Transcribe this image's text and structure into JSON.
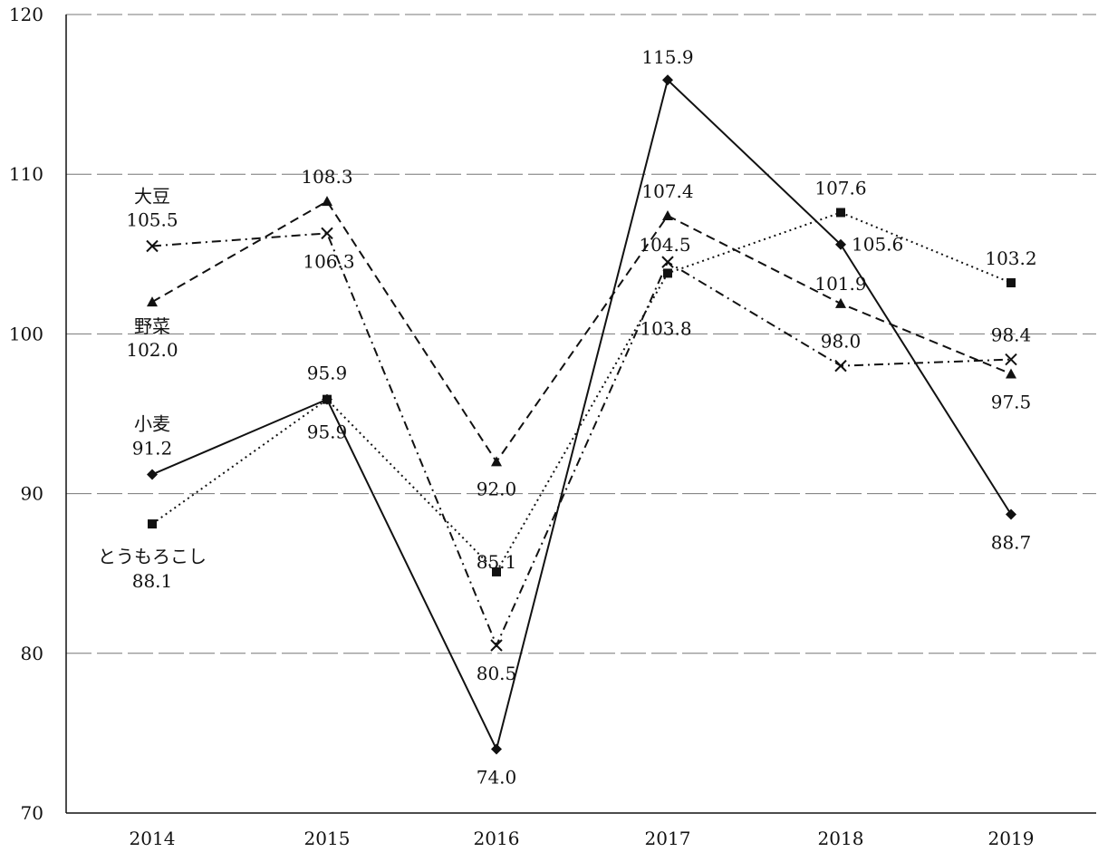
{
  "chart_data": {
    "type": "line",
    "x": [
      "2014",
      "2015",
      "2016",
      "2017",
      "2018",
      "2019"
    ],
    "ylim": [
      70,
      120
    ],
    "yticks": [
      "70",
      "80",
      "90",
      "100",
      "110",
      "120"
    ],
    "grid": true,
    "series": [
      {
        "name": "小麦",
        "marker": "diamond",
        "dash": "solid",
        "values": [
          91.2,
          95.9,
          74.0,
          115.9,
          105.6,
          88.7
        ],
        "labels": [
          "91.2",
          "95.9",
          "74.0",
          "115.9",
          "105.6",
          "88.7"
        ]
      },
      {
        "name": "とうもろこし",
        "marker": "square",
        "dash": "dotted",
        "values": [
          88.1,
          95.9,
          85.1,
          103.8,
          107.6,
          103.2
        ],
        "labels": [
          "88.1",
          "95.9",
          "85.1",
          "103.8",
          "107.6",
          "103.2"
        ]
      },
      {
        "name": "大豆",
        "marker": "x",
        "dash": "dash-dot",
        "values": [
          105.5,
          106.3,
          80.5,
          104.5,
          98.0,
          98.4
        ],
        "labels": [
          "105.5",
          "106.3",
          "80.5",
          "104.5",
          "98.0",
          "98.4"
        ]
      },
      {
        "name": "野菜",
        "marker": "triangle",
        "dash": "dashed",
        "values": [
          102.0,
          108.3,
          92.0,
          107.4,
          101.9,
          97.5
        ],
        "labels": [
          "102.0",
          "108.3",
          "92.0",
          "107.4",
          "101.9",
          "97.5"
        ]
      }
    ]
  }
}
